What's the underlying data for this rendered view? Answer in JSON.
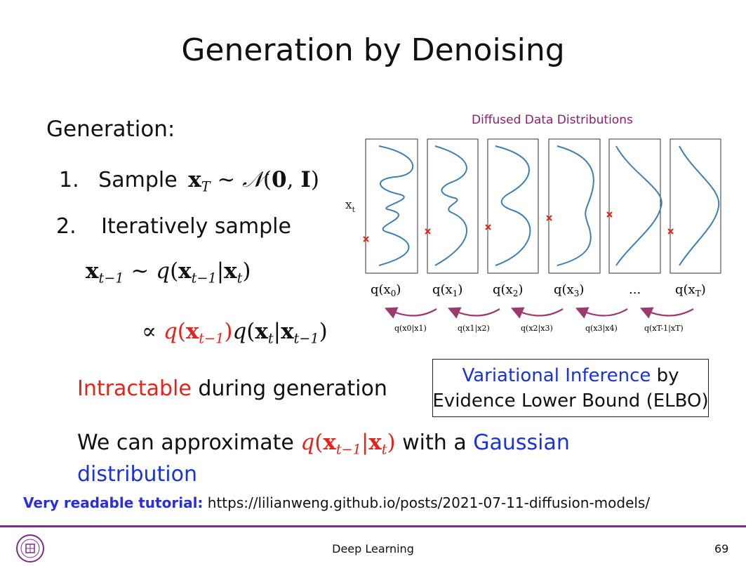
{
  "slide": {
    "title": "Generation by Denoising",
    "generation_heading": "Generation:",
    "steps": [
      {
        "number": "1.",
        "text": "Sample"
      },
      {
        "number": "2.",
        "text": "Iteratively sample"
      }
    ],
    "intractable_word": "Intractable",
    "intractable_rest": " during generation",
    "approx_prefix": "We can approximate ",
    "approx_mid": " with a ",
    "approx_gaussian": "Gaussian",
    "approx_distribution": "distribution",
    "box_line1_blue": "Variational Inference",
    "box_line1_rest": " by",
    "box_line2": "Evidence Lower Bound (ELBO)",
    "tutorial_label": "Very readable tutorial:",
    "tutorial_url": " https://lilianweng.github.io/posts/2021-07-11-diffusion-models/"
  },
  "diagram": {
    "title": "Diffused Data Distributions",
    "axis_label": "x",
    "axis_sub": "t",
    "marginals": [
      {
        "label": "q(x",
        "sub": "0",
        "close": ")"
      },
      {
        "label": "q(x",
        "sub": "1",
        "close": ")"
      },
      {
        "label": "q(x",
        "sub": "2",
        "close": ")"
      },
      {
        "label": "q(x",
        "sub": "3",
        "close": ")"
      },
      {
        "label": "...",
        "sub": "",
        "close": ""
      },
      {
        "label": "q(x",
        "sub": "T",
        "close": ")"
      }
    ],
    "reverse": [
      "q(x0|x1)",
      "q(x1|x2)",
      "q(x2|x3)",
      "q(x3|x4)",
      "q(xT-1|xT)"
    ],
    "colors": {
      "curve": "#3f7fb1",
      "marker": "#e0241b",
      "arrow": "#9b3a6e"
    }
  },
  "footer": {
    "course": "Deep Learning",
    "page": "69"
  }
}
